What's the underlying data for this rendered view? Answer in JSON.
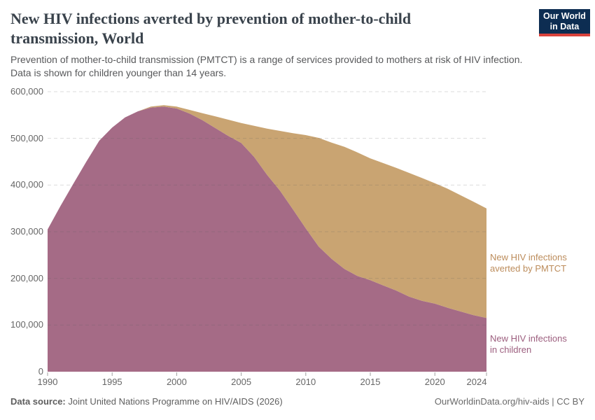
{
  "header": {
    "title_lines": [
      "New HIV infections averted by prevention of mother-to-child",
      "transmission, World"
    ],
    "subtitle_lines": [
      "Prevention of mother-to-child transmission (PMTCT) is a range of services provided to mothers at risk of HIV infection.",
      "Data is shown for children younger than 14 years."
    ],
    "logo": {
      "line1": "Our World",
      "line2": "in Data",
      "bg_color": "#0d2d52",
      "bar_color": "#d9423c"
    }
  },
  "chart_data": {
    "type": "area",
    "stacked": true,
    "title": "New HIV infections averted by prevention of mother-to-child transmission, World",
    "x": [
      1990,
      1991,
      1992,
      1993,
      1994,
      1995,
      1996,
      1997,
      1998,
      1999,
      2000,
      2001,
      2002,
      2003,
      2004,
      2005,
      2006,
      2007,
      2008,
      2009,
      2010,
      2011,
      2012,
      2013,
      2014,
      2015,
      2016,
      2017,
      2018,
      2019,
      2020,
      2021,
      2022,
      2023,
      2024
    ],
    "series": [
      {
        "name": "New HIV infections in children",
        "color": "#A56B86",
        "values": [
          305000,
          355000,
          403000,
          450000,
          495000,
          523000,
          545000,
          558000,
          566000,
          568000,
          564000,
          553000,
          539000,
          522000,
          505000,
          490000,
          460000,
          422000,
          388000,
          348000,
          307000,
          268000,
          242000,
          220000,
          205000,
          196000,
          185000,
          174000,
          161000,
          152000,
          146000,
          137000,
          129000,
          121000,
          115000
        ]
      },
      {
        "name": "New HIV infections averted by PMTCT",
        "color": "#C9A472",
        "values": [
          0,
          0,
          0,
          0,
          0,
          0,
          0,
          0,
          2000,
          3000,
          4000,
          8000,
          15000,
          25000,
          35000,
          43000,
          67000,
          99000,
          128000,
          163000,
          200000,
          233000,
          249000,
          262000,
          265000,
          261000,
          262000,
          263000,
          265000,
          263000,
          258000,
          255000,
          249000,
          243000,
          235000
        ]
      }
    ],
    "ylim": [
      0,
      600000
    ],
    "yticks": [
      {
        "value": 0,
        "label": "0"
      },
      {
        "value": 100000,
        "label": "100,000"
      },
      {
        "value": 200000,
        "label": "200,000"
      },
      {
        "value": 300000,
        "label": "300,000"
      },
      {
        "value": 400000,
        "label": "400,000"
      },
      {
        "value": 500000,
        "label": "500,000"
      },
      {
        "value": 600000,
        "label": "600,000"
      }
    ],
    "xticks": [
      1990,
      1995,
      2000,
      2005,
      2010,
      2015,
      2020,
      2024
    ],
    "grid": "dashed horizontal",
    "legend_position": "right-annotations",
    "grid_color": "#d8d8d8",
    "axis_text_color": "#666666"
  },
  "annotations": {
    "averted_lines": [
      "New HIV infections",
      "averted by PMTCT"
    ],
    "children_lines": [
      "New HIV infections",
      "in children"
    ]
  },
  "footer": {
    "source_label": "Data source:",
    "source_text": " Joint United Nations Programme on HIV/AIDS (2026)",
    "rights": "OurWorldinData.org/hiv-aids | CC BY"
  }
}
